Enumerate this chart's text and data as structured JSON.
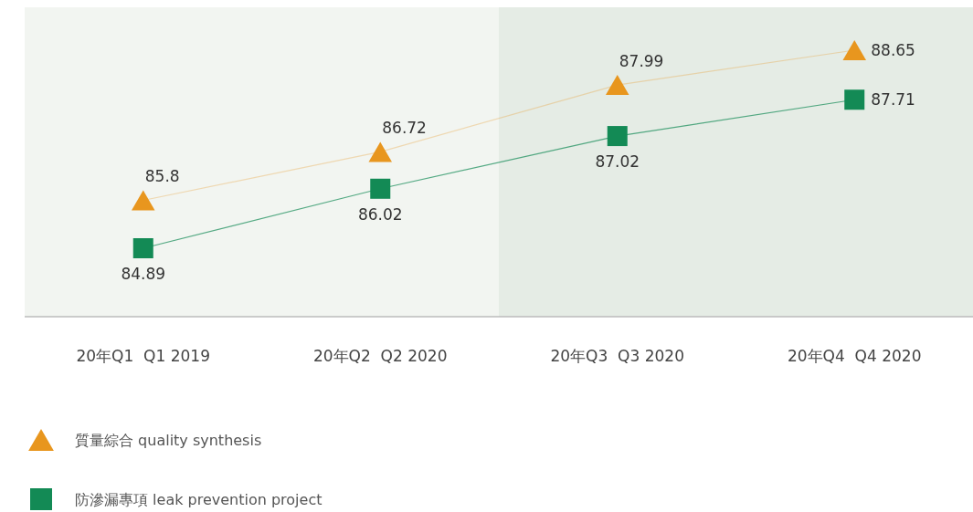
{
  "chart_data": {
    "type": "line",
    "categories": [
      "20年Q1  Q1 2019",
      "20年Q2  Q2 2020",
      "20年Q3  Q3 2020",
      "20年Q4  Q4 2020"
    ],
    "series": [
      {
        "name": "質量綜合 quality synthesis",
        "color": "#e8961e",
        "marker": "triangle",
        "values": [
          85.8,
          86.72,
          87.99,
          88.65
        ]
      },
      {
        "name": "防滲漏專項 leak prevention project",
        "color": "#138a55",
        "marker": "square",
        "values": [
          84.89,
          86.02,
          87.02,
          87.71
        ]
      }
    ],
    "bands": [
      {
        "axis": "x",
        "from": "20年Q3  Q3 2020",
        "to": "20年Q4  Q4 2020",
        "color": "#e5ece5"
      }
    ],
    "data_labels": true,
    "grid": false,
    "legend": "bottom"
  }
}
